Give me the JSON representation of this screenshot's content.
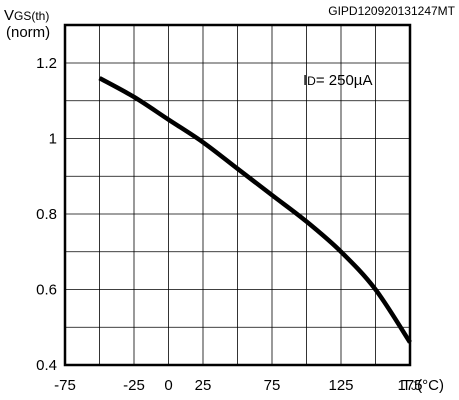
{
  "figure_id": "GIPD120920131247MT",
  "chart_data": {
    "type": "line",
    "title": "",
    "ylabel": {
      "main": "V",
      "sub": "GS(th)",
      "line2": "(norm)"
    },
    "xlabel": {
      "main": "T",
      "sub": "J",
      "unit": "(°C)"
    },
    "xlim": [
      -75,
      175
    ],
    "ylim": [
      0.4,
      1.25
    ],
    "x_ticks": [
      -75,
      -25,
      0,
      25,
      75,
      125,
      175
    ],
    "x_tick_labels": [
      "-75",
      "-25",
      "0",
      "25",
      "75",
      "125",
      "175"
    ],
    "y_ticks": [
      0.4,
      0.6,
      0.8,
      1,
      1.2
    ],
    "y_tick_labels": [
      "0.4",
      "0.6",
      "0.8",
      "1",
      "1.2"
    ],
    "grid": true,
    "annotation": {
      "main": "I",
      "sub": "D",
      "rest": "= 250µA"
    },
    "series": [
      {
        "x": [
          -50,
          -25,
          0,
          25,
          50,
          75,
          100,
          125,
          150,
          175
        ],
        "y": [
          1.16,
          1.11,
          1.05,
          0.99,
          0.92,
          0.85,
          0.78,
          0.7,
          0.6,
          0.46
        ]
      }
    ]
  }
}
